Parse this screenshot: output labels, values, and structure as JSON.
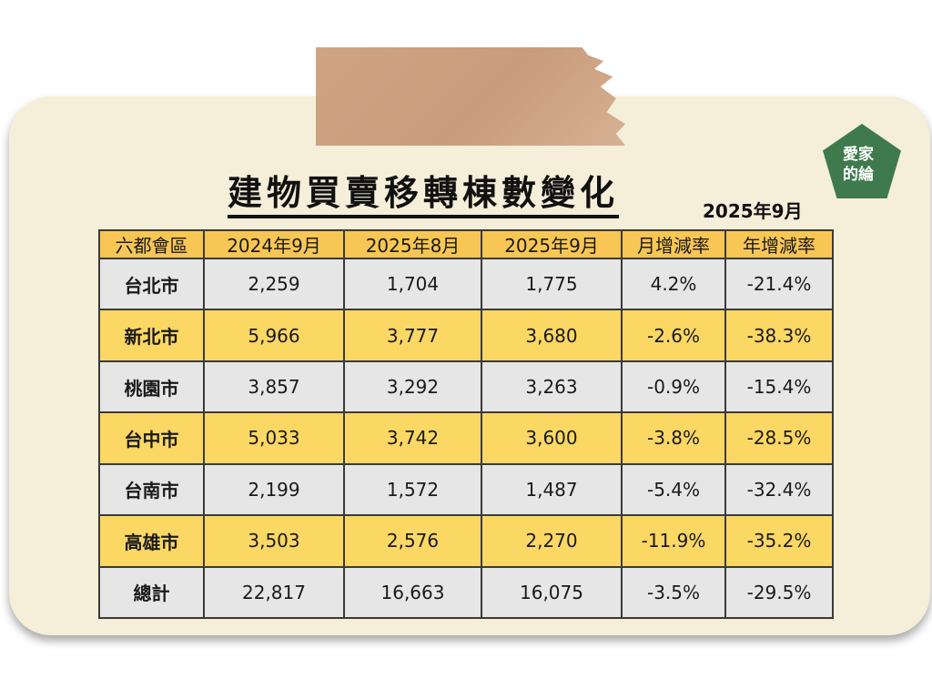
{
  "title": "建物買賣移轉棟數變化",
  "subtitle": "2025年9月",
  "logo": {
    "line1": "愛家",
    "line2": "的綸"
  },
  "table": {
    "headers": [
      "六都會區",
      "2024年9月",
      "2025年8月",
      "2025年9月",
      "月增減率",
      "年增減率"
    ],
    "rows": [
      [
        "台北市",
        "2,259",
        "1,704",
        "1,775",
        "4.2%",
        "-21.4%"
      ],
      [
        "新北市",
        "5,966",
        "3,777",
        "3,680",
        "-2.6%",
        "-38.3%"
      ],
      [
        "桃園市",
        "3,857",
        "3,292",
        "3,263",
        "-0.9%",
        "-15.4%"
      ],
      [
        "台中市",
        "5,033",
        "3,742",
        "3,600",
        "-3.8%",
        "-28.5%"
      ],
      [
        "台南市",
        "2,199",
        "1,572",
        "1,487",
        "-5.4%",
        "-32.4%"
      ],
      [
        "高雄市",
        "3,503",
        "2,576",
        "2,270",
        "-11.9%",
        "-35.2%"
      ],
      [
        "總計",
        "22,817",
        "16,663",
        "16,075",
        "-3.5%",
        "-29.5%"
      ]
    ]
  },
  "colors": {
    "header": "#f8c654",
    "highlight_row": "#fbd764",
    "plain_row": "#e6e6e6",
    "card": "#f5eed8",
    "logo": "#3f7a4d"
  }
}
